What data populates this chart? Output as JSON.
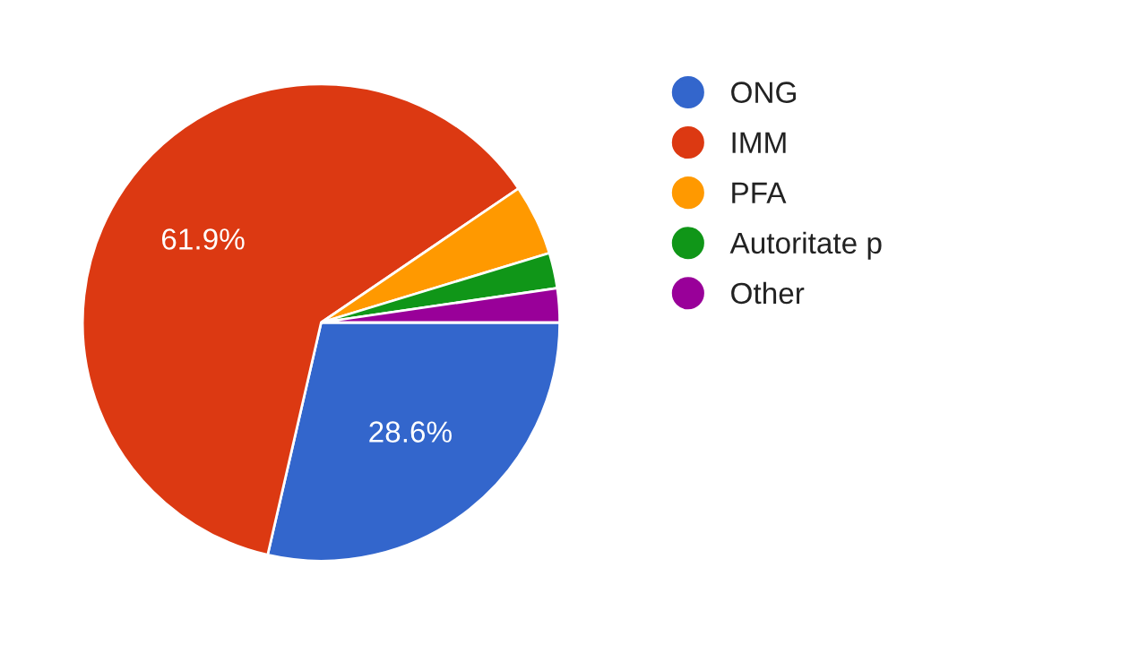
{
  "chart_data": {
    "type": "pie",
    "categories": [
      "ONG",
      "IMM",
      "PFA",
      "Autoritate p",
      "Other"
    ],
    "values": [
      28.6,
      61.9,
      4.8,
      2.4,
      2.3
    ],
    "colors": [
      "#3366cc",
      "#dc3912",
      "#ff9900",
      "#109618",
      "#990099"
    ],
    "value_labels": [
      "28.6%",
      "61.9%",
      null,
      null,
      null
    ],
    "legend": "right"
  }
}
